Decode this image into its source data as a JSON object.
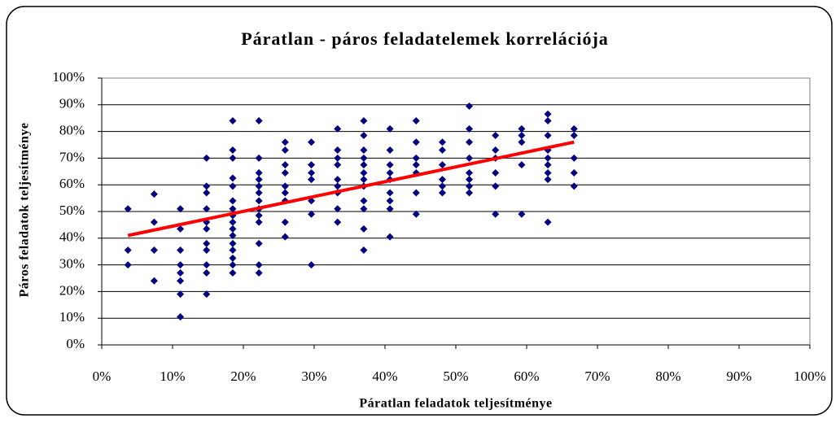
{
  "chart_data": {
    "type": "scatter",
    "title": "Páratlan - páros feladatelemek korrelációja",
    "x_label": "Páratlan feladatok teljesítménye",
    "y_label": "Páros feladatok teljesítménye",
    "color": "#000080",
    "grid": true,
    "xlim": [
      0,
      100
    ],
    "ylim": [
      0,
      100
    ],
    "xticks": [
      {
        "value": 0,
        "label": "0%"
      },
      {
        "value": 10,
        "label": "10%"
      },
      {
        "value": 20,
        "label": "20%"
      },
      {
        "value": 30,
        "label": "30%"
      },
      {
        "value": 40,
        "label": "40%"
      },
      {
        "value": 50,
        "label": "50%"
      },
      {
        "value": 60,
        "label": "60%"
      },
      {
        "value": 70,
        "label": "70%"
      },
      {
        "value": 80,
        "label": "80%"
      },
      {
        "value": 90,
        "label": "90%"
      },
      {
        "value": 100,
        "label": "100%"
      }
    ],
    "yticks": [
      {
        "value": 0,
        "label": "0%"
      },
      {
        "value": 10,
        "label": "10%"
      },
      {
        "value": 20,
        "label": "20%"
      },
      {
        "value": 30,
        "label": "30%"
      },
      {
        "value": 40,
        "label": "40%"
      },
      {
        "value": 50,
        "label": "50%"
      },
      {
        "value": 60,
        "label": "60%"
      },
      {
        "value": 70,
        "label": "70%"
      },
      {
        "value": 80,
        "label": "80%"
      },
      {
        "value": 90,
        "label": "90%"
      },
      {
        "value": 100,
        "label": "100%"
      }
    ],
    "x": [
      3.7,
      3.7,
      3.7,
      7.4,
      7.4,
      7.4,
      7.4,
      11.1,
      11.1,
      11.1,
      11.1,
      11.1,
      11.1,
      11.1,
      11.1,
      14.8,
      14.8,
      14.8,
      14.8,
      14.8,
      14.8,
      14.8,
      14.8,
      14.8,
      14.8,
      14.8,
      18.5,
      18.5,
      18.5,
      18.5,
      18.5,
      18.5,
      18.5,
      18.5,
      18.5,
      18.5,
      18.5,
      18.5,
      18.5,
      18.5,
      18.5,
      18.5,
      22.2,
      22.2,
      22.2,
      22.2,
      22.2,
      22.2,
      22.2,
      22.2,
      22.2,
      22.2,
      22.2,
      22.2,
      22.2,
      25.9,
      25.9,
      25.9,
      25.9,
      25.9,
      25.9,
      25.9,
      25.9,
      25.9,
      29.6,
      29.6,
      29.6,
      29.6,
      29.6,
      29.6,
      29.6,
      33.3,
      33.3,
      33.3,
      33.3,
      33.3,
      33.3,
      33.3,
      33.3,
      33.3,
      37,
      37,
      37,
      37,
      37,
      37,
      37,
      37,
      37,
      37,
      37,
      37,
      40.7,
      40.7,
      40.7,
      40.7,
      40.7,
      40.7,
      40.7,
      40.7,
      40.7,
      44.4,
      44.4,
      44.4,
      44.4,
      44.4,
      44.4,
      44.4,
      48.1,
      48.1,
      48.1,
      48.1,
      48.1,
      48.1,
      51.9,
      51.9,
      51.9,
      51.9,
      51.9,
      51.9,
      51.9,
      51.9,
      55.6,
      55.6,
      55.6,
      55.6,
      55.6,
      55.6,
      59.3,
      59.3,
      59.3,
      59.3,
      59.3,
      63,
      63,
      63,
      63,
      63,
      63,
      63,
      63,
      63,
      66.7,
      66.7,
      66.7,
      66.7,
      66.7
    ],
    "values": [
      51,
      35.5,
      30,
      56.5,
      46,
      35.5,
      24,
      51,
      43.5,
      35.5,
      30,
      27,
      24,
      19,
      10.5,
      70,
      59.5,
      57,
      51,
      46,
      43.5,
      38,
      35.5,
      30,
      27,
      19,
      84,
      73,
      70,
      62.5,
      59.5,
      54,
      51,
      48.5,
      46,
      43.5,
      41,
      38,
      35.5,
      32.5,
      30,
      27,
      84,
      70,
      64.5,
      62,
      59.5,
      57,
      54,
      51,
      48.5,
      46,
      38,
      30,
      27,
      76,
      73,
      67.5,
      64.5,
      59.5,
      57,
      54,
      46,
      40.5,
      76,
      67.5,
      64.5,
      62,
      54,
      49,
      30,
      81,
      73,
      70,
      67.5,
      62,
      59.5,
      57,
      51,
      46,
      84,
      78.5,
      73,
      70,
      67.5,
      64.5,
      62,
      59.5,
      54,
      51,
      43.5,
      35.5,
      81,
      73,
      67.5,
      64.5,
      62,
      57,
      54,
      51,
      40.5,
      84,
      76,
      70,
      67.5,
      64.5,
      57,
      49,
      76,
      73,
      67.5,
      62,
      59.5,
      57,
      89.5,
      81,
      76,
      70,
      64.5,
      62,
      59.5,
      57,
      78.5,
      73,
      70,
      64.5,
      59.5,
      49,
      81,
      78.5,
      76,
      67.5,
      49,
      86.5,
      84,
      78.5,
      73,
      70,
      67.5,
      64.5,
      62,
      46,
      81,
      78.5,
      70,
      64.5,
      59.5
    ],
    "trendline": {
      "x": [
        3.7,
        66.7
      ],
      "values": [
        41,
        76
      ],
      "color": "#ff0000"
    }
  }
}
